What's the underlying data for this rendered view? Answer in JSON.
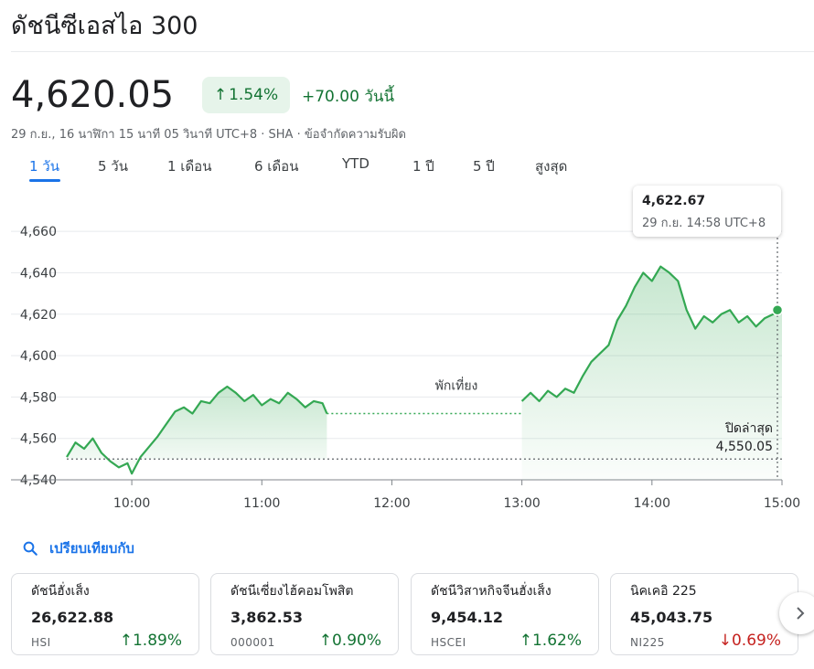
{
  "header": {
    "title": "ดัชนีซีเอสไอ 300",
    "price": "4,620.05",
    "change_percent": "1.54%",
    "change_abs": "+70.00 วันนี้",
    "timestamp": "29 ก.ย., 16 นาฬิกา 15 นาที 05 วินาที UTC+8",
    "exchange": "SHA",
    "disclaimer": "ข้อจำกัดความรับผิด",
    "separator": "·"
  },
  "tabs": [
    "1 วัน",
    "5 วัน",
    "1 เดือน",
    "6 เดือน",
    "YTD",
    "1 ปี",
    "5 ปี",
    "สูงสุด"
  ],
  "active_tab": "1 วัน",
  "tooltip": {
    "value": "4,622.67",
    "time": "29 ก.ย. 14:58 UTC+8"
  },
  "colors": {
    "up": "#137333",
    "down": "#c5221f",
    "line": "#34a853",
    "accent": "#1a73e8"
  },
  "chart_data": {
    "type": "line",
    "y_ticks": [
      "4,660",
      "4,640",
      "4,620",
      "4,600",
      "4,580",
      "4,560",
      "4,540"
    ],
    "x_ticks": [
      "10:00",
      "11:00",
      "12:00",
      "13:00",
      "14:00",
      "15:00"
    ],
    "ylim": [
      4540,
      4668
    ],
    "xlim": [
      "09:30",
      "15:00"
    ],
    "grid": true,
    "previous_close": {
      "label": "ปิดล่าสุด",
      "value": 4550.05,
      "value_text": "4,550.05"
    },
    "lunch_break": {
      "label": "พักเที่ยง",
      "start": "11:30",
      "end": "13:00",
      "value": 4572
    },
    "series": [
      {
        "x": [
          "09:30",
          "09:34",
          "09:38",
          "09:42",
          "09:46",
          "09:50",
          "09:54",
          "09:58",
          "10:00",
          "10:04",
          "10:08",
          "10:12",
          "10:16",
          "10:20",
          "10:24",
          "10:28",
          "10:32",
          "10:36",
          "10:40",
          "10:44",
          "10:48",
          "10:52",
          "10:56",
          "11:00",
          "11:04",
          "11:08",
          "11:12",
          "11:16",
          "11:20",
          "11:24",
          "11:28",
          "11:30"
        ],
        "values": [
          4551,
          4558,
          4555,
          4560,
          4553,
          4549,
          4546,
          4548,
          4543,
          4551,
          4556,
          4561,
          4567,
          4573,
          4575,
          4572,
          4578,
          4577,
          4582,
          4585,
          4582,
          4578,
          4581,
          4576,
          4579,
          4577,
          4582,
          4579,
          4575,
          4578,
          4577,
          4572
        ]
      },
      {
        "x": [
          "13:00",
          "13:04",
          "13:08",
          "13:12",
          "13:16",
          "13:20",
          "13:24",
          "13:28",
          "13:32",
          "13:36",
          "13:40",
          "13:44",
          "13:48",
          "13:52",
          "13:56",
          "14:00",
          "14:04",
          "14:08",
          "14:12",
          "14:16",
          "14:20",
          "14:24",
          "14:28",
          "14:32",
          "14:36",
          "14:40",
          "14:44",
          "14:48",
          "14:52",
          "14:56",
          "14:58",
          "15:00"
        ],
        "values": [
          4578,
          4582,
          4578,
          4583,
          4580,
          4584,
          4582,
          4590,
          4597,
          4601,
          4605,
          4617,
          4624,
          4633,
          4640,
          4636,
          4643,
          4640,
          4636,
          4622,
          4613,
          4619,
          4616,
          4620,
          4622,
          4616,
          4619,
          4614,
          4618,
          4620,
          4622.67,
          4622
        ]
      }
    ]
  },
  "compare": {
    "label": "เปรียบเทียบกับ"
  },
  "cards": [
    {
      "name": "ดัชนีฮั่งเส็ง",
      "value": "26,622.88",
      "symbol": "HSI",
      "change": "1.89%",
      "direction": "up"
    },
    {
      "name": "ดัชนีเซี่ยงไฮ้คอมโพสิต",
      "value": "3,862.53",
      "symbol": "000001",
      "change": "0.90%",
      "direction": "up"
    },
    {
      "name": "ดัชนีวิสาหกิจจีนฮั่งเส็ง",
      "value": "9,454.12",
      "symbol": "HSCEI",
      "change": "1.62%",
      "direction": "up"
    },
    {
      "name": "นิคเคอิ 225",
      "value": "45,043.75",
      "symbol": "NI225",
      "change": "0.69%",
      "direction": "down"
    }
  ]
}
